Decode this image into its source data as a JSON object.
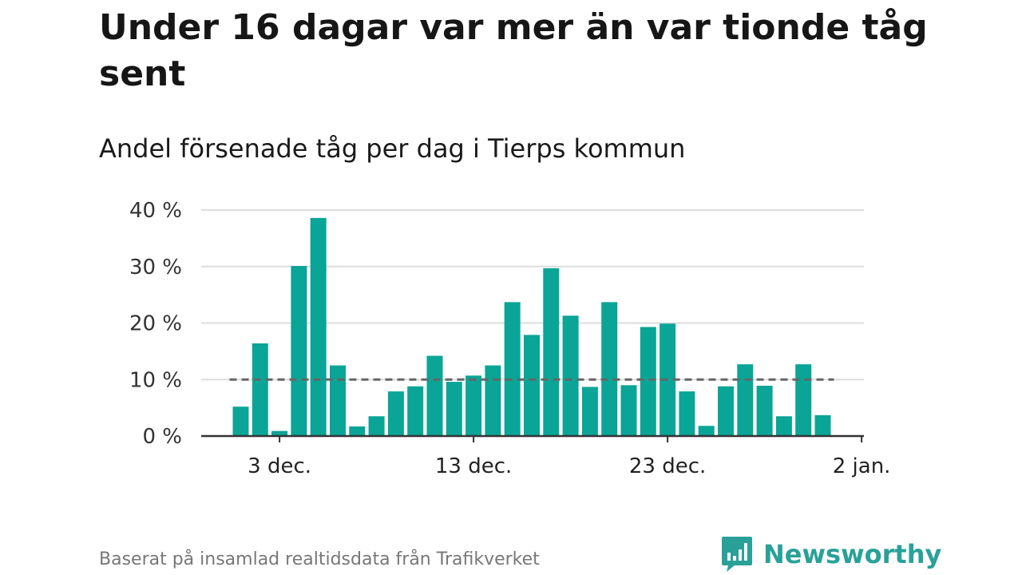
{
  "title": "Under 16 dagar var mer än var tionde tåg sent",
  "subtitle": "Andel försenade tåg per dag i Tierps kommun",
  "source": "Baserat på insamlad realtidsdata från Trafikverket",
  "brand": {
    "name": "Newsworthy",
    "icon": "bar-chart-speech-bubble-icon",
    "color": "#2aa198"
  },
  "colors": {
    "bar": "#0aa596",
    "reference": "#666666",
    "grid": "#dddddd",
    "axis": "#333333"
  },
  "chart_data": {
    "type": "bar",
    "x": [
      "1 dec.",
      "2 dec.",
      "3 dec.",
      "4 dec.",
      "5 dec.",
      "6 dec.",
      "7 dec.",
      "8 dec.",
      "9 dec.",
      "10 dec.",
      "11 dec.",
      "12 dec.",
      "13 dec.",
      "14 dec.",
      "15 dec.",
      "16 dec.",
      "17 dec.",
      "18 dec.",
      "19 dec.",
      "20 dec.",
      "21 dec.",
      "22 dec.",
      "23 dec.",
      "24 dec.",
      "25 dec.",
      "26 dec.",
      "27 dec.",
      "28 dec.",
      "29 dec.",
      "30 dec.",
      "31 dec."
    ],
    "values": [
      5.2,
      16.4,
      0.9,
      30.1,
      38.6,
      12.5,
      1.7,
      3.5,
      7.9,
      8.8,
      14.2,
      9.6,
      10.7,
      12.5,
      23.7,
      17.9,
      29.7,
      21.3,
      8.7,
      23.7,
      9.0,
      19.3,
      19.9,
      7.9,
      1.8,
      8.8,
      12.7,
      8.9,
      3.5,
      12.7,
      3.7
    ],
    "reference_line": 10,
    "ylim": [
      0,
      40
    ],
    "yticks": [
      0,
      10,
      20,
      30,
      40
    ],
    "ytick_labels": [
      "0 %",
      "10 %",
      "20 %",
      "30 %",
      "40 %"
    ],
    "xticks": [
      "3 dec.",
      "13 dec.",
      "23 dec.",
      "2 jan."
    ],
    "grid": true,
    "legend": "none",
    "xlabel": "",
    "ylabel": ""
  }
}
